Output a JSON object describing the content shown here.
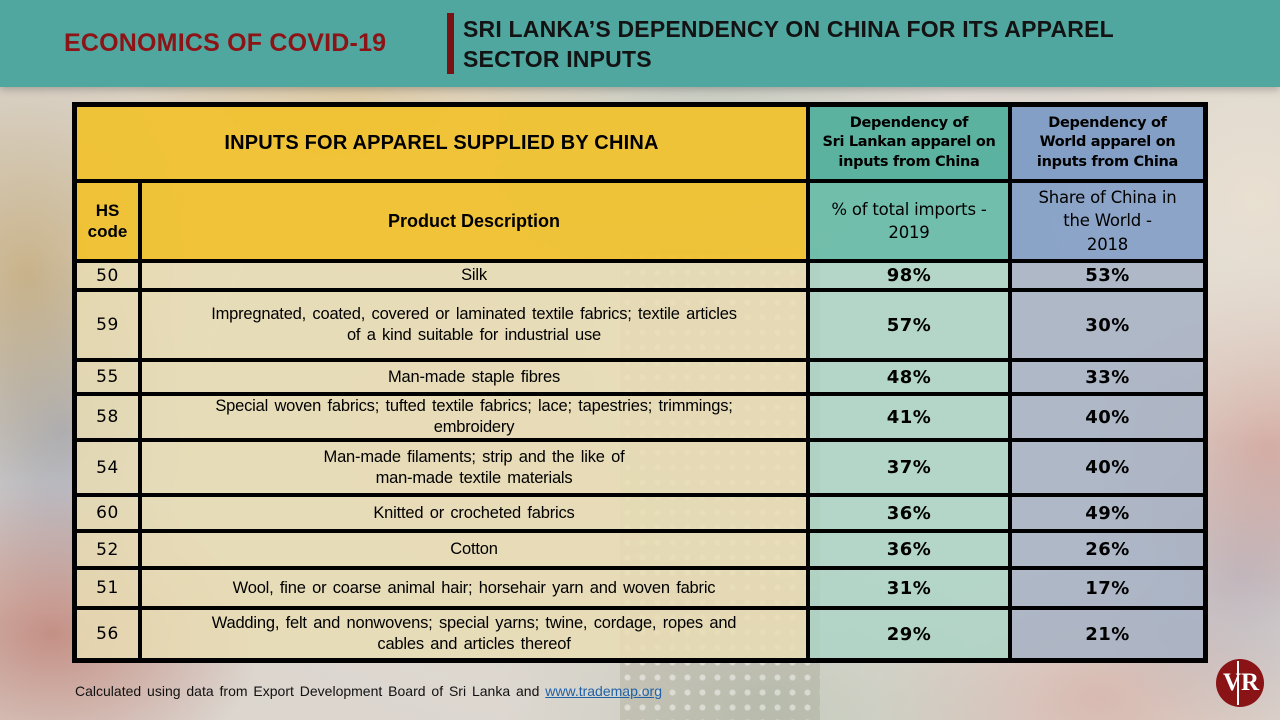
{
  "banner": {
    "brand": "ECONOMICS OF COVID-19",
    "title": "SRI LANKA’S DEPENDENCY ON CHINA FOR ITS APPAREL\nSECTOR INPUTS"
  },
  "table": {
    "merged_header": "INPUTS FOR APPAREL SUPPLIED BY CHINA",
    "col_sl_header": "Dependency of\nSri Lankan apparel on\ninputs from China",
    "col_world_header": "Dependency of\nWorld apparel on\ninputs from China",
    "hs_header": "HS code",
    "product_header": "Product Description",
    "sl_sub_header": "% of total imports -\n2019",
    "world_sub_header": "Share of China in\nthe World -\n2018",
    "rows": [
      {
        "hs": "50",
        "desc": "Silk",
        "sl": "98%",
        "world": "53%"
      },
      {
        "hs": "59",
        "desc": "Impregnated, coated, covered or laminated textile fabrics; textile articles\nof a kind suitable for industrial use",
        "sl": "57%",
        "world": "30%"
      },
      {
        "hs": "55",
        "desc": "Man-made staple fibres",
        "sl": "48%",
        "world": "33%"
      },
      {
        "hs": "58",
        "desc": "Special woven fabrics; tufted textile fabrics; lace; tapestries; trimmings;\nembroidery",
        "sl": "41%",
        "world": "40%"
      },
      {
        "hs": "54",
        "desc": "Man-made filaments; strip and the like of\nman-made textile materials",
        "sl": "37%",
        "world": "40%"
      },
      {
        "hs": "60",
        "desc": "Knitted or crocheted fabrics",
        "sl": "36%",
        "world": "49%"
      },
      {
        "hs": "52",
        "desc": "Cotton",
        "sl": "36%",
        "world": "26%"
      },
      {
        "hs": "51",
        "desc": "Wool, fine or coarse animal hair; horsehair yarn and woven fabric",
        "sl": "31%",
        "world": "17%"
      },
      {
        "hs": "56",
        "desc": "Wadding, felt and nonwovens; special yarns; twine, cordage, ropes and\ncables and articles thereof",
        "sl": "29%",
        "world": "21%"
      }
    ]
  },
  "footer": {
    "text": "Calculated using data from Export Development Board of Sri Lanka and ",
    "link_label": "www.trademap.org"
  },
  "logo": {
    "letter_v": "V",
    "letter_r": "R"
  },
  "colors": {
    "banner_bg": "#4FA7A0",
    "brand_red": "#8C1416",
    "header_yellow": "#F0C230",
    "header_teal": "#55B09D",
    "header_blue": "#7F9CC5",
    "row_cream": "#E9DDB4",
    "row_teal": "#A9D5C6",
    "row_blue": "#A6B2C5",
    "link_blue": "#1F61A8",
    "logo_red": "#8A1316"
  }
}
